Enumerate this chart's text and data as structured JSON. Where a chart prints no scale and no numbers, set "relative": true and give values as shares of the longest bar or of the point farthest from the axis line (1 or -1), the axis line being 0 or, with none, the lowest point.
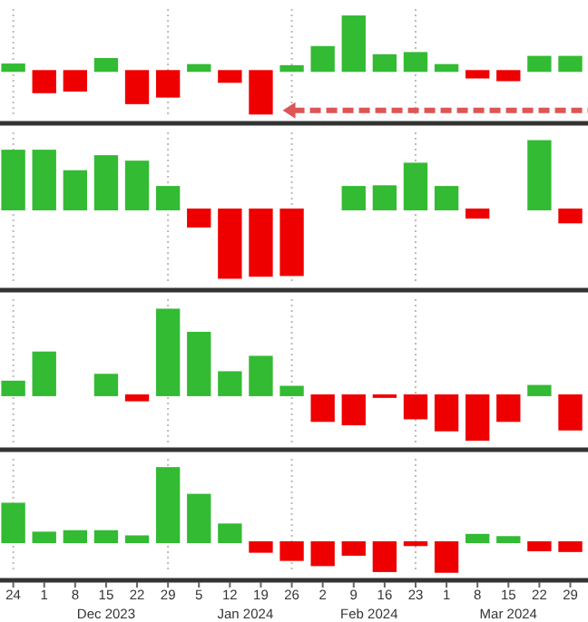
{
  "chart_data": [
    {
      "type": "bar",
      "relative": true,
      "grid": "x",
      "tick_labels": false,
      "xlim": [
        "2023-11-21",
        "2024-04-02"
      ],
      "x": [
        "2023-11-24",
        "2023-12-01",
        "2023-12-08",
        "2023-12-15",
        "2023-12-22",
        "2023-12-29",
        "2024-01-05",
        "2024-01-12",
        "2024-01-19",
        "2024-01-26",
        "2024-02-02",
        "2024-02-09",
        "2024-02-16",
        "2024-02-23",
        "2024-03-01",
        "2024-03-08",
        "2024-03-15",
        "2024-03-22",
        "2024-03-29"
      ],
      "values": [
        0.12,
        -0.39,
        -0.36,
        0.22,
        -0.59,
        -0.47,
        0.11,
        -0.2,
        -0.78,
        0.09,
        0.44,
        1,
        0.29,
        0.33,
        0.11,
        -0.12,
        -0.17,
        0.26,
        0.26
      ],
      "colors": [
        "#33bb33",
        "#ee0000",
        "#ee0000",
        "#33bb33",
        "#ee0000",
        "#ee0000",
        "#33bb33",
        "#ee0000",
        "#ee0000",
        "#33bb33",
        "#33bb33",
        "#33bb33",
        "#33bb33",
        "#33bb33",
        "#33bb33",
        "#ee0000",
        "#ee0000",
        "#33bb33",
        "#33bb33"
      ]
    },
    {
      "type": "bar",
      "relative": true,
      "grid": "x",
      "tick_labels": false,
      "xlim": [
        "2023-11-21",
        "2024-04-02"
      ],
      "x": [
        "2023-11-24",
        "2023-12-01",
        "2023-12-08",
        "2023-12-15",
        "2023-12-22",
        "2023-12-29",
        "2024-01-05",
        "2024-01-12",
        "2024-01-19",
        "2024-01-26",
        "2024-02-02",
        "2024-02-09",
        "2024-02-16",
        "2024-02-23",
        "2024-03-01",
        "2024-03-08",
        "2024-03-15",
        "2024-03-22",
        "2024-03-29"
      ],
      "values": [
        0.86,
        0.86,
        0.56,
        0.78,
        0.7,
        0.33,
        -0.25,
        -1,
        -0.97,
        -0.96,
        0,
        0.33,
        0.34,
        0.67,
        0.33,
        -0.12,
        0,
        1,
        -0.19
      ],
      "colors": [
        "#33bb33",
        "#33bb33",
        "#33bb33",
        "#33bb33",
        "#33bb33",
        "#33bb33",
        "#ee0000",
        "#ee0000",
        "#ee0000",
        "#ee0000",
        "#aaaaaa",
        "#33bb33",
        "#33bb33",
        "#33bb33",
        "#33bb33",
        "#ee0000",
        "#aaaaaa",
        "#33bb33",
        "#ee0000"
      ]
    },
    {
      "type": "bar",
      "relative": true,
      "grid": "x",
      "tick_labels": false,
      "xlim": [
        "2023-11-21",
        "2024-04-02"
      ],
      "x": [
        "2023-11-24",
        "2023-12-01",
        "2023-12-08",
        "2023-12-15",
        "2023-12-22",
        "2023-12-29",
        "2024-01-05",
        "2024-01-12",
        "2024-01-19",
        "2024-01-26",
        "2024-02-02",
        "2024-02-09",
        "2024-02-16",
        "2024-02-23",
        "2024-03-01",
        "2024-03-08",
        "2024-03-15",
        "2024-03-22",
        "2024-03-29"
      ],
      "values": [
        0.16,
        0.5,
        0,
        0.24,
        -0.06,
        1,
        0.73,
        0.27,
        0.45,
        0.1,
        -0.3,
        -0.34,
        -0.02,
        -0.27,
        -0.41,
        -0.52,
        -0.3,
        0.11,
        -0.4
      ],
      "colors": [
        "#33bb33",
        "#33bb33",
        "#aaaaaa",
        "#33bb33",
        "#ee0000",
        "#33bb33",
        "#33bb33",
        "#33bb33",
        "#33bb33",
        "#33bb33",
        "#ee0000",
        "#ee0000",
        "#ee0000",
        "#ee0000",
        "#ee0000",
        "#ee0000",
        "#ee0000",
        "#33bb33",
        "#ee0000"
      ]
    },
    {
      "type": "bar",
      "relative": true,
      "grid": "x",
      "tick_labels": "x",
      "xlim": [
        "2023-11-21",
        "2024-04-02"
      ],
      "x": [
        "2023-11-24",
        "2023-12-01",
        "2023-12-08",
        "2023-12-15",
        "2023-12-22",
        "2023-12-29",
        "2024-01-05",
        "2024-01-12",
        "2024-01-19",
        "2024-01-26",
        "2024-02-02",
        "2024-02-09",
        "2024-02-16",
        "2024-02-23",
        "2024-03-01",
        "2024-03-08",
        "2024-03-15",
        "2024-03-22",
        "2024-03-29"
      ],
      "values": [
        0.52,
        0.13,
        0.15,
        0.15,
        0.08,
        1,
        0.64,
        0.24,
        -0.13,
        -0.24,
        -0.31,
        -0.17,
        -0.39,
        -0.04,
        -0.4,
        0.1,
        0.07,
        -0.11,
        -0.12
      ],
      "colors": [
        "#33bb33",
        "#33bb33",
        "#33bb33",
        "#33bb33",
        "#33bb33",
        "#33bb33",
        "#33bb33",
        "#33bb33",
        "#ee0000",
        "#ee0000",
        "#ee0000",
        "#ee0000",
        "#ee0000",
        "#ee0000",
        "#ee0000",
        "#33bb33",
        "#33bb33",
        "#ee0000",
        "#ee0000"
      ],
      "xticks": [
        {
          "value": "2023-11-24",
          "label": "24"
        },
        {
          "value": "2023-12-01",
          "label": "1"
        },
        {
          "value": "2023-12-08",
          "label": "8"
        },
        {
          "value": "2023-12-15",
          "label": "15"
        },
        {
          "value": "2023-12-22",
          "label": "22"
        },
        {
          "value": "2023-12-29",
          "label": "29"
        },
        {
          "value": "2024-01-05",
          "label": "5"
        },
        {
          "value": "2024-01-12",
          "label": "12"
        },
        {
          "value": "2024-01-19",
          "label": "19"
        },
        {
          "value": "2024-01-26",
          "label": "26"
        },
        {
          "value": "2024-02-02",
          "label": "2"
        },
        {
          "value": "2024-02-09",
          "label": "9"
        },
        {
          "value": "2024-02-16",
          "label": "16"
        },
        {
          "value": "2024-02-23",
          "label": "23"
        },
        {
          "value": "2024-03-01",
          "label": "1"
        },
        {
          "value": "2024-03-08",
          "label": "8"
        },
        {
          "value": "2024-03-15",
          "label": "15"
        },
        {
          "value": "2024-03-22",
          "label": "22"
        },
        {
          "value": "2024-03-29",
          "label": "29"
        }
      ],
      "annotations": [
        "Dec 2023",
        "Jan 2024",
        "Feb 2024",
        "Mar 2024"
      ]
    }
  ]
}
